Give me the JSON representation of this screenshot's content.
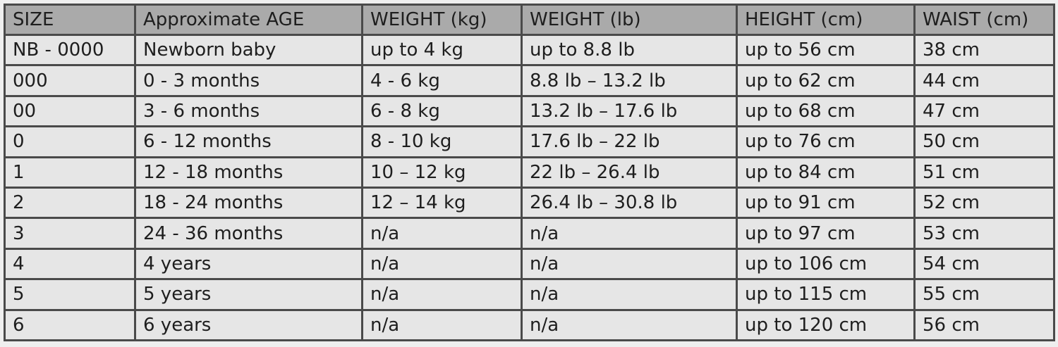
{
  "table": {
    "headers": [
      "SIZE",
      "Approximate AGE",
      "WEIGHT (kg)",
      "WEIGHT (lb)",
      "HEIGHT (cm)",
      "WAIST (cm)"
    ],
    "rows": [
      [
        "NB - 0000",
        "Newborn baby",
        "up to 4 kg",
        "up to 8.8 lb",
        "up to 56 cm",
        "38 cm"
      ],
      [
        "000",
        "0 - 3 months",
        "4 - 6 kg",
        "8.8 lb – 13.2 lb",
        "up to 62 cm",
        "44 cm"
      ],
      [
        "00",
        "3 - 6 months",
        "6 - 8 kg",
        "13.2 lb – 17.6 lb",
        "up to 68 cm",
        "47 cm"
      ],
      [
        "0",
        "6 - 12 months",
        "8 - 10 kg",
        "17.6 lb – 22 lb",
        "up to 76 cm",
        "50 cm"
      ],
      [
        "1",
        "12 - 18 months",
        "10 – 12 kg",
        "22 lb – 26.4 lb",
        "up to 84 cm",
        "51 cm"
      ],
      [
        "2",
        "18 - 24 months",
        "12 – 14 kg",
        "26.4 lb – 30.8 lb",
        "up to 91 cm",
        "52 cm"
      ],
      [
        "3",
        "24 - 36 months",
        "n/a",
        "n/a",
        "up to 97 cm",
        "53 cm"
      ],
      [
        "4",
        "4 years",
        "n/a",
        "n/a",
        "up to 106 cm",
        "54 cm"
      ],
      [
        "5",
        "5 years",
        "n/a",
        "n/a",
        "up to 115 cm",
        "55 cm"
      ],
      [
        "6",
        "6 years",
        "n/a",
        "n/a",
        "up to 120 cm",
        "56 cm"
      ]
    ]
  }
}
